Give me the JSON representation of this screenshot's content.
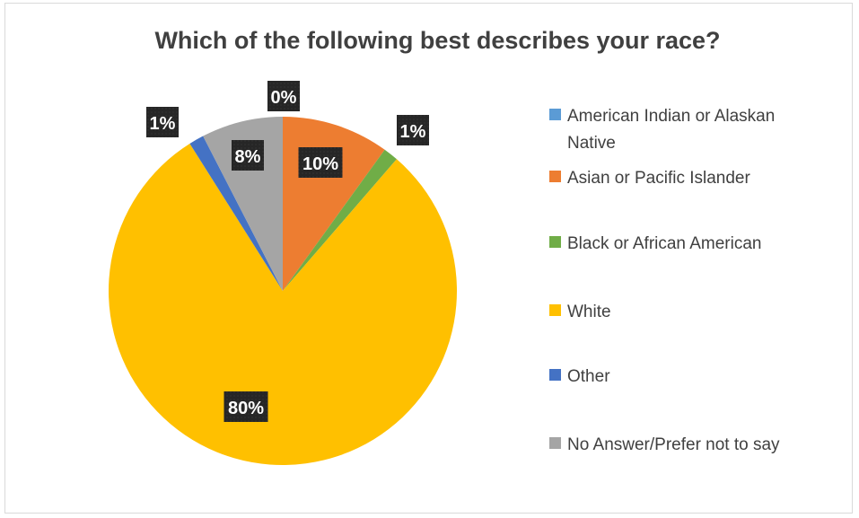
{
  "chart_data": {
    "type": "pie",
    "title": "Which of the following best describes your race?",
    "slices": [
      {
        "label": "American Indian or Alaskan Native",
        "value": 0,
        "data_label": "0%",
        "color": "#5b9bd5"
      },
      {
        "label": "Asian or Pacific Islander",
        "value": 10,
        "data_label": "10%",
        "color": "#ed7d31"
      },
      {
        "label": "Black or African American",
        "value": 1.4,
        "data_label": "1%",
        "color": "#70ad47"
      },
      {
        "label": "White",
        "value": 80,
        "data_label": "80%",
        "color": "#ffc000"
      },
      {
        "label": "Other",
        "value": 1.4,
        "data_label": "1%",
        "color": "#4472c4"
      },
      {
        "label": "No Answer/Prefer not to say",
        "value": 7.6,
        "data_label": "8%",
        "color": "#a5a5a5"
      }
    ],
    "legend_position": "right",
    "data_label_style": {
      "background": "#262626",
      "text_color": "#ffffff"
    }
  }
}
